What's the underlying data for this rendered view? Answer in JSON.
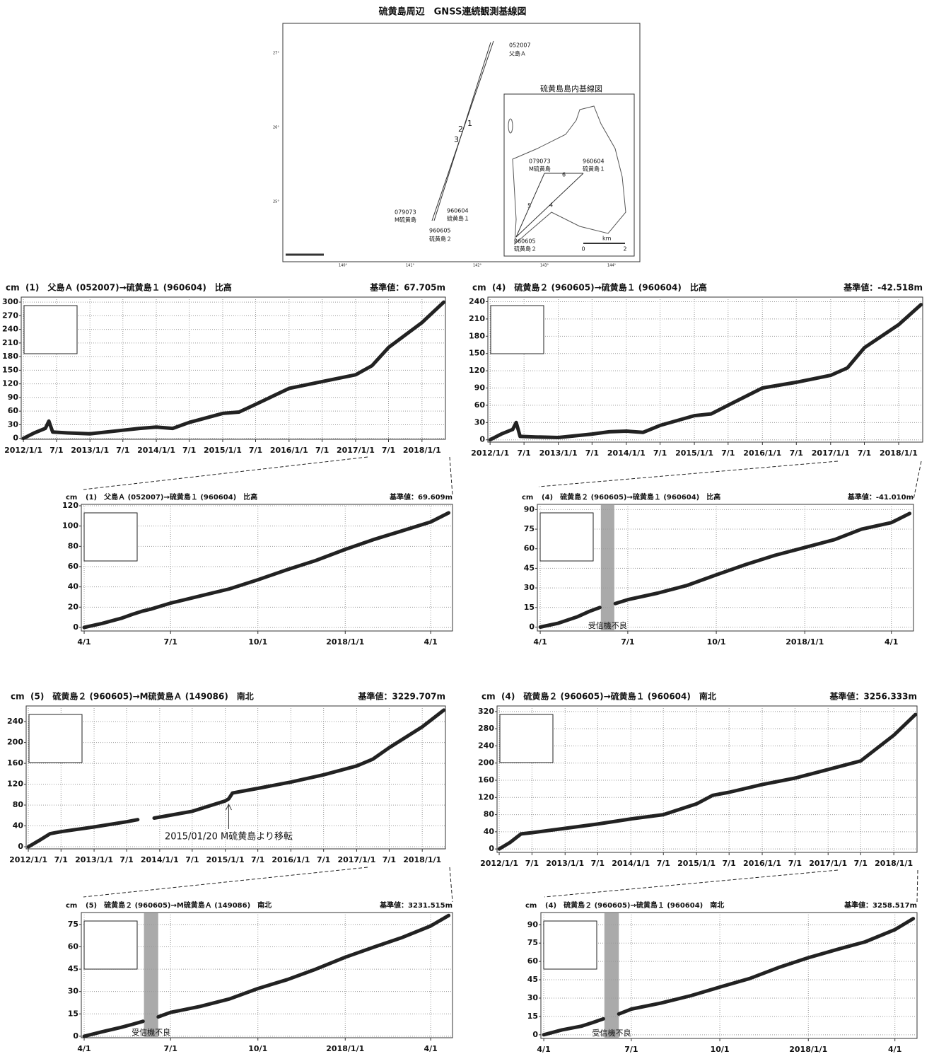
{
  "map": {
    "title": "硫黄島周辺　GNSS連続観測基線図",
    "inset_title": "硫黄島島内基線図",
    "stations": [
      {
        "code": "052007",
        "name": "父島Ａ"
      },
      {
        "code": "079073",
        "name": "M硫黄島"
      },
      {
        "code": "960604",
        "name": "硫黄島１"
      },
      {
        "code": "960605",
        "name": "硫黄島２"
      }
    ],
    "inset_stations": [
      {
        "code": "079073",
        "name": "M硫黄島"
      },
      {
        "code": "960604",
        "name": "硫黄島１"
      },
      {
        "code": "960605",
        "name": "硫黄島２"
      }
    ],
    "baselines": [
      "1",
      "2",
      "3"
    ],
    "inset_baselines": [
      "4",
      "5",
      "6"
    ],
    "scale": {
      "unit": "km",
      "start": "0",
      "end": "2"
    },
    "lat_labels": [
      "27°",
      "26°",
      "25°"
    ],
    "lon_labels": [
      "140°",
      "141°",
      "142°",
      "143°",
      "144°"
    ]
  },
  "chart_data": [
    {
      "type": "line",
      "title": "(1)　父島Ａ (052007)→硫黄島１ (960604)　比高",
      "baseline": "基準値：67.705m",
      "y_unit": "cm",
      "color": "#222222",
      "grid": true,
      "x": [
        "2012-01-01",
        "2012-03-01",
        "2012-05-01",
        "2012-05-20",
        "2012-06-10",
        "2012-09-01",
        "2013-01-01",
        "2013-07-01",
        "2013-10-01",
        "2014-01-01",
        "2014-04-01",
        "2014-07-01",
        "2015-01-01",
        "2015-04-01",
        "2015-07-01",
        "2016-01-01",
        "2016-07-01",
        "2017-01-01",
        "2017-04-01",
        "2017-07-01",
        "2018-01-01",
        "2018-05-01"
      ],
      "values": [
        0,
        12,
        22,
        38,
        14,
        12,
        10,
        18,
        22,
        25,
        22,
        35,
        55,
        58,
        75,
        110,
        125,
        140,
        160,
        200,
        255,
        300
      ],
      "xlim": [
        "2011-12-20",
        "2018-05-10"
      ],
      "ylim": [
        -2,
        311
      ],
      "yticks": [
        0,
        30,
        60,
        90,
        120,
        150,
        180,
        210,
        240,
        270,
        300
      ],
      "xticks": [
        {
          "value": "2012-01-01",
          "label": "2012/1/1"
        },
        {
          "value": "2012-07-01",
          "label": "7/1"
        },
        {
          "value": "2013-01-01",
          "label": "2013/1/1"
        },
        {
          "value": "2013-07-01",
          "label": "7/1"
        },
        {
          "value": "2014-01-01",
          "label": "2014/1/1"
        },
        {
          "value": "2014-07-01",
          "label": "7/1"
        },
        {
          "value": "2015-01-01",
          "label": "2015/1/1"
        },
        {
          "value": "2015-07-01",
          "label": "7/1"
        },
        {
          "value": "2016-01-01",
          "label": "2016/1/1"
        },
        {
          "value": "2016-07-01",
          "label": "7/1"
        },
        {
          "value": "2017-01-01",
          "label": "2017/1/1"
        },
        {
          "value": "2017-07-01",
          "label": "7/1"
        },
        {
          "value": "2018-01-01",
          "label": "2018/1/1"
        }
      ]
    },
    {
      "type": "line",
      "title": "(4)　硫黄島２ (960605)→硫黄島１ (960604)　比高",
      "baseline": "基準値：-42.518m",
      "y_unit": "cm",
      "color": "#222222",
      "grid": true,
      "x": [
        "2012-01-01",
        "2012-03-01",
        "2012-05-01",
        "2012-05-20",
        "2012-06-10",
        "2012-09-01",
        "2013-01-01",
        "2013-07-01",
        "2013-10-01",
        "2014-01-01",
        "2014-04-01",
        "2014-07-01",
        "2015-01-01",
        "2015-04-01",
        "2015-07-01",
        "2016-01-01",
        "2016-07-01",
        "2017-01-01",
        "2017-04-01",
        "2017-07-01",
        "2018-01-01",
        "2018-05-01"
      ],
      "values": [
        0,
        10,
        18,
        30,
        6,
        5,
        4,
        10,
        14,
        15,
        13,
        25,
        42,
        45,
        60,
        90,
        100,
        112,
        125,
        160,
        200,
        235
      ],
      "xlim": [
        "2011-12-20",
        "2018-05-10"
      ],
      "ylim": [
        -4,
        248
      ],
      "yticks": [
        0,
        30,
        60,
        90,
        120,
        150,
        180,
        210,
        240
      ],
      "xticks": [
        {
          "value": "2012-01-01",
          "label": "2012/1/1"
        },
        {
          "value": "2012-07-01",
          "label": "7/1"
        },
        {
          "value": "2013-01-01",
          "label": "2013/1/1"
        },
        {
          "value": "2013-07-01",
          "label": "7/1"
        },
        {
          "value": "2014-01-01",
          "label": "2014/1/1"
        },
        {
          "value": "2014-07-01",
          "label": "7/1"
        },
        {
          "value": "2015-01-01",
          "label": "2015/1/1"
        },
        {
          "value": "2015-07-01",
          "label": "7/1"
        },
        {
          "value": "2016-01-01",
          "label": "2016/1/1"
        },
        {
          "value": "2016-07-01",
          "label": "7/1"
        },
        {
          "value": "2017-01-01",
          "label": "2017/1/1"
        },
        {
          "value": "2017-07-01",
          "label": "7/1"
        },
        {
          "value": "2018-01-01",
          "label": "2018/1/1"
        }
      ]
    },
    {
      "type": "line",
      "title": "(1)　父島Ａ (052007)→硫黄島１ (960604)　比高",
      "baseline": "基準値：69.609m",
      "y_unit": "cm",
      "color": "#222222",
      "grid": true,
      "x": [
        "2017-04-01",
        "2017-04-20",
        "2017-05-10",
        "2017-05-22",
        "2017-06-01",
        "2017-06-10",
        "2017-07-01",
        "2017-08-01",
        "2017-09-01",
        "2017-10-01",
        "2017-11-01",
        "2017-12-01",
        "2018-01-01",
        "2018-02-01",
        "2018-03-01",
        "2018-04-01",
        "2018-04-20"
      ],
      "values": [
        0,
        4,
        9,
        13,
        16,
        18,
        24,
        31,
        38,
        47,
        57,
        66,
        77,
        87,
        95,
        104,
        113
      ],
      "xlim": [
        "2017-03-29",
        "2018-04-24"
      ],
      "ylim": [
        -3.5,
        121.4
      ],
      "yticks": [
        0,
        20,
        40,
        60,
        80,
        100,
        120
      ],
      "xticks": [
        {
          "value": "2017-04-01",
          "label": "4/1"
        },
        {
          "value": "2017-07-01",
          "label": "7/1"
        },
        {
          "value": "2017-10-01",
          "label": "10/1"
        },
        {
          "value": "2018-01-01",
          "label": "2018/1/1"
        },
        {
          "value": "2018-04-01",
          "label": "4/1"
        }
      ]
    },
    {
      "type": "line",
      "title": "(4)　硫黄島２ (960605)→硫黄島１ (960604)　比高",
      "baseline": "基準値：-41.010m",
      "y_unit": "cm",
      "color": "#222222",
      "grid": true,
      "x": [
        "2017-04-01",
        "2017-04-20",
        "2017-05-10",
        "2017-05-22",
        "2017-06-02",
        "2017-06-10",
        "2017-06-18",
        "2017-07-01",
        "2017-08-01",
        "2017-09-01",
        "2017-10-01",
        "2017-11-01",
        "2017-12-01",
        "2018-01-01",
        "2018-02-01",
        "2018-03-01",
        "2018-04-01",
        "2018-04-20"
      ],
      "values": [
        0,
        3,
        8,
        12,
        15,
        null,
        18,
        21,
        26,
        32,
        40,
        48,
        55,
        61,
        67,
        75,
        80,
        87
      ],
      "shade": {
        "from": "2017-06-03",
        "to": "2017-06-17",
        "label": "受信機不良",
        "color": "#aaaaaa"
      },
      "xlim": [
        "2017-03-29",
        "2018-04-24"
      ],
      "ylim": [
        -3,
        94
      ],
      "yticks": [
        0,
        15,
        30,
        45,
        60,
        75,
        90
      ],
      "xticks": [
        {
          "value": "2017-04-01",
          "label": "4/1"
        },
        {
          "value": "2017-07-01",
          "label": "7/1"
        },
        {
          "value": "2017-10-01",
          "label": "10/1"
        },
        {
          "value": "2018-01-01",
          "label": "2018/1/1"
        },
        {
          "value": "2018-04-01",
          "label": "4/1"
        }
      ]
    },
    {
      "type": "line",
      "title": "(5)　硫黄島２ (960605)→M硫黄島Ａ (149086)　南北",
      "baseline": "基準値：3229.707m",
      "y_unit": "cm",
      "color": "#222222",
      "grid": true,
      "x": [
        "2012-01-01",
        "2012-03-01",
        "2012-05-01",
        "2012-07-01",
        "2013-01-01",
        "2013-07-01",
        "2013-09-01",
        "2013-10-15",
        "2013-12-01",
        "2014-07-01",
        "2015-01-01",
        "2015-01-20",
        "2015-02-10",
        "2015-07-01",
        "2016-01-01",
        "2016-07-01",
        "2017-01-01",
        "2017-04-01",
        "2017-07-01",
        "2018-01-01",
        "2018-05-01"
      ],
      "values": [
        0,
        12,
        25,
        29,
        38,
        48,
        52,
        null,
        55,
        68,
        88,
        92,
        103,
        112,
        124,
        138,
        155,
        168,
        190,
        230,
        262
      ],
      "annotation": {
        "text": "2015/01/20 M硫黄島より移転",
        "x": "2015-01-20"
      },
      "xlim": [
        "2011-12-20",
        "2018-05-10"
      ],
      "ylim": [
        -4,
        270
      ],
      "yticks": [
        0,
        40,
        80,
        120,
        160,
        200,
        240
      ],
      "xticks": [
        {
          "value": "2012-01-01",
          "label": "2012/1/1"
        },
        {
          "value": "2012-07-01",
          "label": "7/1"
        },
        {
          "value": "2013-01-01",
          "label": "2013/1/1"
        },
        {
          "value": "2013-07-01",
          "label": "7/1"
        },
        {
          "value": "2014-01-01",
          "label": "2014/1/1"
        },
        {
          "value": "2014-07-01",
          "label": "7/1"
        },
        {
          "value": "2015-01-01",
          "label": "2015/1/1"
        },
        {
          "value": "2015-07-01",
          "label": "7/1"
        },
        {
          "value": "2016-01-01",
          "label": "2016/1/1"
        },
        {
          "value": "2016-07-01",
          "label": "7/1"
        },
        {
          "value": "2017-01-01",
          "label": "2017/1/1"
        },
        {
          "value": "2017-07-01",
          "label": "7/1"
        },
        {
          "value": "2018-01-01",
          "label": "2018/1/1"
        }
      ]
    },
    {
      "type": "line",
      "title": "(4)　硫黄島２ (960605)→硫黄島１ (960604)　南北",
      "baseline": "基準値：3256.333m",
      "y_unit": "cm",
      "color": "#222222",
      "grid": true,
      "x": [
        "2012-01-01",
        "2012-03-01",
        "2012-05-01",
        "2012-07-01",
        "2013-01-01",
        "2013-07-01",
        "2014-01-01",
        "2014-07-01",
        "2015-01-01",
        "2015-04-01",
        "2015-07-01",
        "2016-01-01",
        "2016-07-01",
        "2017-01-01",
        "2017-07-01",
        "2018-01-01",
        "2018-05-01"
      ],
      "values": [
        0,
        15,
        35,
        38,
        48,
        58,
        70,
        80,
        105,
        125,
        132,
        150,
        165,
        185,
        205,
        265,
        313
      ],
      "xlim": [
        "2011-12-20",
        "2018-05-10"
      ],
      "ylim": [
        -8,
        333
      ],
      "yticks": [
        0,
        40,
        80,
        120,
        160,
        200,
        240,
        280,
        320
      ],
      "xticks": [
        {
          "value": "2012-01-01",
          "label": "2012/1/1"
        },
        {
          "value": "2012-07-01",
          "label": "7/1"
        },
        {
          "value": "2013-01-01",
          "label": "2013/1/1"
        },
        {
          "value": "2013-07-01",
          "label": "7/1"
        },
        {
          "value": "2014-01-01",
          "label": "2014/1/1"
        },
        {
          "value": "2014-07-01",
          "label": "7/1"
        },
        {
          "value": "2015-01-01",
          "label": "2015/1/1"
        },
        {
          "value": "2015-07-01",
          "label": "7/1"
        },
        {
          "value": "2016-01-01",
          "label": "2016/1/1"
        },
        {
          "value": "2016-07-01",
          "label": "7/1"
        },
        {
          "value": "2017-01-01",
          "label": "2017/1/1"
        },
        {
          "value": "2017-07-01",
          "label": "7/1"
        },
        {
          "value": "2018-01-01",
          "label": "2018/1/1"
        }
      ]
    },
    {
      "type": "line",
      "title": "(5)　硫黄島２ (960605)→M硫黄島Ａ (149086)　南北",
      "baseline": "基準値：3231.515m",
      "y_unit": "cm",
      "color": "#222222",
      "grid": true,
      "x": [
        "2017-04-01",
        "2017-04-20",
        "2017-05-10",
        "2017-05-22",
        "2017-06-02",
        "2017-06-10",
        "2017-06-18",
        "2017-07-01",
        "2017-08-01",
        "2017-09-01",
        "2017-10-01",
        "2017-11-01",
        "2017-12-01",
        "2018-01-01",
        "2018-02-01",
        "2018-03-01",
        "2018-04-01",
        "2018-04-20"
      ],
      "values": [
        0,
        3,
        6,
        8,
        10,
        null,
        13,
        16,
        20,
        25,
        32,
        38,
        45,
        53,
        60,
        66,
        74,
        81
      ],
      "shade": {
        "from": "2017-06-03",
        "to": "2017-06-18",
        "label": "受信機不良",
        "color": "#aaaaaa"
      },
      "xlim": [
        "2017-03-29",
        "2018-04-24"
      ],
      "ylim": [
        -1,
        83
      ],
      "yticks": [
        0,
        15,
        30,
        45,
        60,
        75
      ],
      "xticks": [
        {
          "value": "2017-04-01",
          "label": "4/1"
        },
        {
          "value": "2017-07-01",
          "label": "7/1"
        },
        {
          "value": "2017-10-01",
          "label": "10/1"
        },
        {
          "value": "2018-01-01",
          "label": "2018/1/1"
        },
        {
          "value": "2018-04-01",
          "label": "4/1"
        }
      ]
    },
    {
      "type": "line",
      "title": "(4)　硫黄島２ (960605)→硫黄島１ (960604)　南北",
      "baseline": "基準値：3258.517m",
      "y_unit": "cm",
      "color": "#222222",
      "grid": true,
      "x": [
        "2017-04-01",
        "2017-04-20",
        "2017-05-10",
        "2017-05-22",
        "2017-06-02",
        "2017-06-10",
        "2017-06-18",
        "2017-07-01",
        "2017-08-01",
        "2017-09-01",
        "2017-10-01",
        "2017-11-01",
        "2017-12-01",
        "2018-01-01",
        "2018-02-01",
        "2018-03-01",
        "2018-04-01",
        "2018-04-20"
      ],
      "values": [
        0,
        4,
        7,
        10,
        13,
        null,
        17,
        21,
        26,
        32,
        39,
        46,
        55,
        63,
        70,
        76,
        86,
        95
      ],
      "shade": {
        "from": "2017-06-03",
        "to": "2017-06-18",
        "label": "受信機不良",
        "color": "#aaaaaa"
      },
      "xlim": [
        "2017-03-29",
        "2018-04-24"
      ],
      "ylim": [
        -3,
        100
      ],
      "yticks": [
        0,
        15,
        30,
        45,
        60,
        75,
        90
      ],
      "xticks": [
        {
          "value": "2017-04-01",
          "label": "4/1"
        },
        {
          "value": "2017-07-01",
          "label": "7/1"
        },
        {
          "value": "2017-10-01",
          "label": "10/1"
        },
        {
          "value": "2018-01-01",
          "label": "2018/1/1"
        },
        {
          "value": "2018-04-01",
          "label": "4/1"
        }
      ]
    }
  ]
}
